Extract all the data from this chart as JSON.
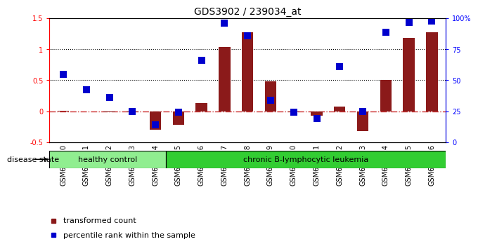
{
  "title": "GDS3902 / 239034_at",
  "categories": [
    "GSM658010",
    "GSM658011",
    "GSM658012",
    "GSM658013",
    "GSM658014",
    "GSM658015",
    "GSM658016",
    "GSM658017",
    "GSM658018",
    "GSM658019",
    "GSM658020",
    "GSM658021",
    "GSM658022",
    "GSM658023",
    "GSM658024",
    "GSM658025",
    "GSM658026"
  ],
  "bar_values": [
    0.01,
    0.0,
    -0.02,
    -0.02,
    -0.3,
    -0.22,
    0.13,
    1.03,
    1.27,
    0.48,
    -0.02,
    -0.07,
    0.07,
    -0.32,
    0.5,
    1.18,
    1.27
  ],
  "dot_values": [
    0.6,
    0.35,
    0.22,
    0.0,
    -0.22,
    -0.02,
    0.82,
    1.42,
    1.22,
    0.18,
    -0.02,
    -0.12,
    0.72,
    0.0,
    1.27,
    1.43,
    1.45
  ],
  "group_labels": [
    "healthy control",
    "chronic B-lymphocytic leukemia"
  ],
  "healthy_count": 5,
  "total_count": 17,
  "group_color_light": "#90EE90",
  "group_color_dark": "#32CD32",
  "bar_color": "#8B1A1A",
  "dot_color": "#0000CD",
  "ylim_left": [
    -0.5,
    1.5
  ],
  "ylim_right": [
    0,
    100
  ],
  "yticks_left": [
    -0.5,
    0.0,
    0.5,
    1.0,
    1.5
  ],
  "yticks_right": [
    0,
    25,
    50,
    75,
    100
  ],
  "ytick_labels_left": [
    "-0.5",
    "0",
    "0.5",
    "1",
    "1.5"
  ],
  "ytick_labels_right": [
    "0",
    "25",
    "50",
    "75",
    "100%"
  ],
  "hlines": [
    0.5,
    1.0
  ],
  "zero_line_color": "#CC3333",
  "hline_color": "black",
  "legend_labels": [
    "transformed count",
    "percentile rank within the sample"
  ],
  "legend_colors": [
    "#8B1A1A",
    "#0000CD"
  ],
  "disease_state_label": "disease state",
  "bar_width": 0.5,
  "dot_size": 45,
  "title_fontsize": 10,
  "tick_fontsize": 7,
  "label_fontsize": 8
}
